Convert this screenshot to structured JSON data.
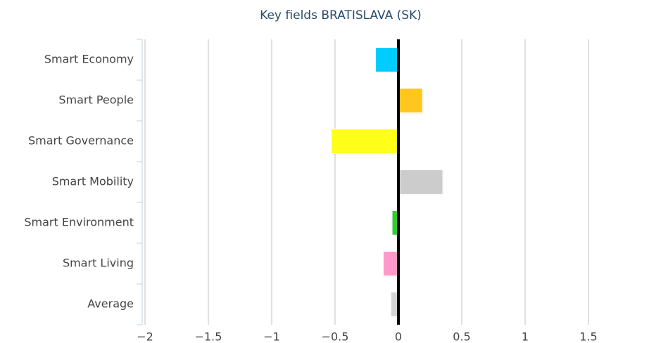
{
  "chart_data": {
    "type": "bar",
    "orientation": "horizontal",
    "title": "Key fields BRATISLAVA (SK)",
    "categories": [
      "Smart Economy",
      "Smart People",
      "Smart Governance",
      "Smart Mobility",
      "Smart Environment",
      "Smart Living",
      "Average"
    ],
    "values": [
      -0.18,
      0.19,
      -0.53,
      0.35,
      -0.05,
      -0.12,
      -0.06
    ],
    "colors": [
      "#00ccff",
      "#ffc61e",
      "#ffff1a",
      "#cccccc",
      "#33cc33",
      "#ff99cc",
      "#d4d4d4"
    ],
    "xlim": [
      -2,
      1.5
    ],
    "xticks": [
      {
        "value": -2,
        "label": "−2"
      },
      {
        "value": -1.5,
        "label": "−1.5"
      },
      {
        "value": -1,
        "label": "−1"
      },
      {
        "value": -0.5,
        "label": "−0.5"
      },
      0,
      0.5,
      1,
      1.5
    ],
    "grid": true
  }
}
